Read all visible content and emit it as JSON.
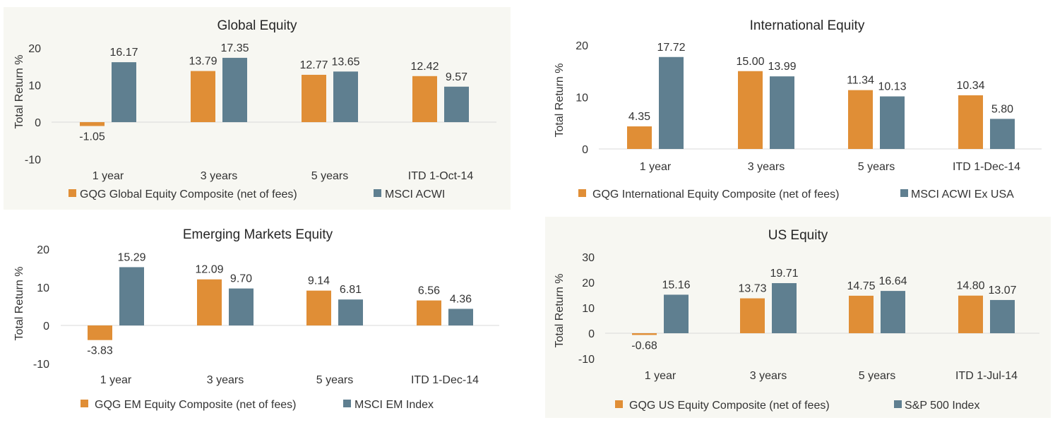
{
  "colors": {
    "composite": "#E08E36",
    "benchmark": "#5F7F90",
    "panel_bg": "#F7F7F2",
    "zero_line": "#D9D9D9"
  },
  "chart_data": [
    {
      "id": "global",
      "type": "bar",
      "title": "Global Equity",
      "xlabel": "",
      "ylabel": "Total Return %",
      "ylim": [
        -10,
        20
      ],
      "yticks": [
        "20",
        "10",
        "0",
        "-10"
      ],
      "ytick_values": [
        20,
        10,
        0,
        -10
      ],
      "categories": [
        "1 year",
        "3 years",
        "5 years",
        "ITD 1-Oct-14"
      ],
      "series": [
        {
          "name": "GQG Global Equity Composite (net of fees)",
          "values": [
            -1.05,
            13.79,
            12.77,
            12.42
          ],
          "labels": [
            "-1.05",
            "13.79",
            "12.77",
            "12.42"
          ]
        },
        {
          "name": "MSCI ACWI",
          "values": [
            16.17,
            17.35,
            13.65,
            9.57
          ],
          "labels": [
            "16.17",
            "17.35",
            "13.65",
            "9.57"
          ]
        }
      ],
      "legend": "bottom",
      "grid": false,
      "background": "shaded"
    },
    {
      "id": "international",
      "type": "bar",
      "title": "International Equity",
      "xlabel": "",
      "ylabel": "Total Return %",
      "ylim": [
        0,
        20
      ],
      "yticks": [
        "20",
        "10",
        "0"
      ],
      "ytick_values": [
        20,
        10,
        0
      ],
      "categories": [
        "1 year",
        "3 years",
        "5 years",
        "ITD 1-Dec-14"
      ],
      "series": [
        {
          "name": "GQG International Equity Composite (net of fees)",
          "values": [
            4.35,
            15.0,
            11.34,
            10.34
          ],
          "labels": [
            "4.35",
            "15.00",
            "11.34",
            "10.34"
          ]
        },
        {
          "name": "MSCI ACWI Ex USA",
          "values": [
            17.72,
            13.99,
            10.13,
            5.8
          ],
          "labels": [
            "17.72",
            "13.99",
            "10.13",
            "5.80"
          ]
        }
      ],
      "legend": "bottom",
      "grid": false,
      "background": "white"
    },
    {
      "id": "emerging",
      "type": "bar",
      "title": "Emerging Markets Equity",
      "xlabel": "",
      "ylabel": "Total Return %",
      "ylim": [
        -10,
        20
      ],
      "yticks": [
        "20",
        "10",
        "0",
        "-10"
      ],
      "ytick_values": [
        20,
        10,
        0,
        -10
      ],
      "categories": [
        "1 year",
        "3 years",
        "5 years",
        "ITD 1-Dec-14"
      ],
      "series": [
        {
          "name": "GQG EM Equity Composite (net of fees)",
          "values": [
            -3.83,
            12.09,
            9.14,
            6.56
          ],
          "labels": [
            "-3.83",
            "12.09",
            "9.14",
            "6.56"
          ]
        },
        {
          "name": "MSCI EM Index",
          "values": [
            15.29,
            9.7,
            6.81,
            4.36
          ],
          "labels": [
            "15.29",
            "9.70",
            "6.81",
            "4.36"
          ]
        }
      ],
      "legend": "bottom",
      "grid": false,
      "background": "white"
    },
    {
      "id": "us",
      "type": "bar",
      "title": "US Equity",
      "xlabel": "",
      "ylabel": "Total Return %",
      "ylim": [
        -10,
        30
      ],
      "yticks": [
        "30",
        "20",
        "10",
        "0",
        "-10"
      ],
      "ytick_values": [
        30,
        20,
        10,
        0,
        -10
      ],
      "categories": [
        "1 year",
        "3 years",
        "5 years",
        "ITD 1-Jul-14"
      ],
      "series": [
        {
          "name": "GQG US Equity Composite (net of fees)",
          "values": [
            -0.68,
            13.73,
            14.75,
            14.8
          ],
          "labels": [
            "-0.68",
            "13.73",
            "14.75",
            "14.80"
          ]
        },
        {
          "name": "S&P 500 Index",
          "values": [
            15.16,
            19.71,
            16.64,
            13.07
          ],
          "labels": [
            "15.16",
            "19.71",
            "16.64",
            "13.07"
          ]
        }
      ],
      "legend": "bottom",
      "grid": false,
      "background": "shaded"
    }
  ]
}
